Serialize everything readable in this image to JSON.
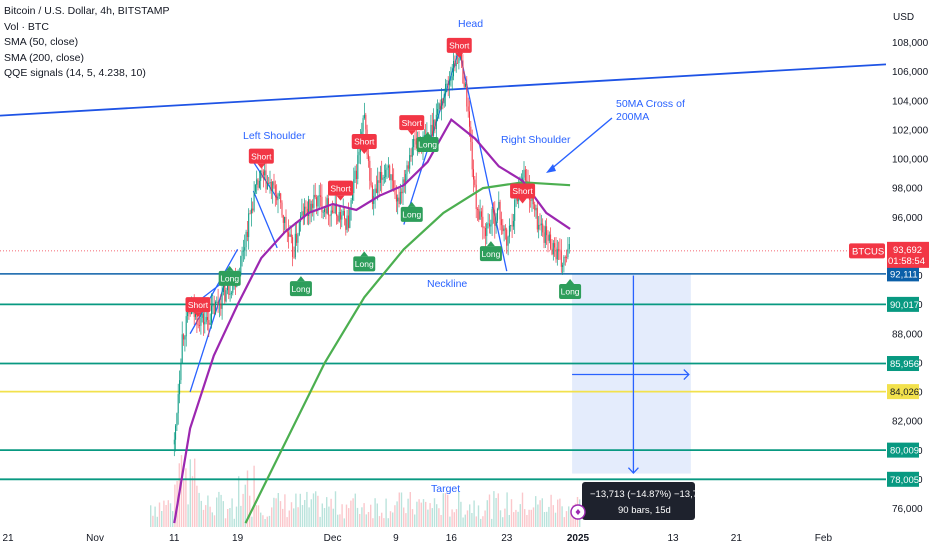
{
  "legend": {
    "title": "Bitcoin / U.S. Dollar, 4h, BITSTAMP",
    "vol": "Vol · BTC",
    "sma50": "SMA (50, close)",
    "sma200": "SMA (200, close)",
    "qqe": "QQE signals (14, 5, 4.238, 10)"
  },
  "currency": "USD",
  "symbol": "BTCUSD",
  "last_price": "93,692",
  "countdown": "01:58:54",
  "measure": {
    "line1": "−13,713 (−14.87%) −13,713",
    "line2": "90 bars, 15d"
  },
  "annotations": {
    "head": "Head",
    "left_shoulder": "Left Shoulder",
    "right_shoulder": "Right Shoulder",
    "neckline": "Neckline",
    "ma_cross": [
      "50MA Cross of",
      "200MA"
    ],
    "target": "Target"
  },
  "chart_data": {
    "type": "candlestick",
    "y_axis": {
      "min": 75000,
      "max": 109000,
      "ticks": [
        76000,
        78000,
        80000,
        82000,
        84000,
        86000,
        88000,
        90000,
        92000,
        94000,
        96000,
        98000,
        100000,
        102000,
        104000,
        106000,
        108000
      ],
      "tick_labels": [
        "76,000",
        "78,000",
        "80,000",
        "82,000",
        "84,000",
        "86,000",
        "88,000",
        "90,000",
        "92,000",
        "94,000",
        "96,000",
        "98,000",
        "100,000",
        "102,000",
        "104,000",
        "106,000",
        "108,000"
      ]
    },
    "x_axis": {
      "ticks": [
        {
          "label": "21",
          "date": "2024-10-21"
        },
        {
          "label": "Nov",
          "date": "2024-11-01"
        },
        {
          "label": "11",
          "date": "2024-11-11"
        },
        {
          "label": "19",
          "date": "2024-11-19"
        },
        {
          "label": "Dec",
          "date": "2024-12-01"
        },
        {
          "label": "9",
          "date": "2024-12-09"
        },
        {
          "label": "16",
          "date": "2024-12-16"
        },
        {
          "label": "23",
          "date": "2024-12-23"
        },
        {
          "label": "2025",
          "date": "2025-01-01"
        },
        {
          "label": "13",
          "date": "2025-01-13"
        },
        {
          "label": "21",
          "date": "2025-01-21"
        },
        {
          "label": "Feb",
          "date": "2025-02-01"
        }
      ]
    },
    "horizontal_levels": [
      {
        "price": 92111,
        "label": "92,111",
        "color": "#0b5fa8"
      },
      {
        "price": 90017,
        "label": "90,017",
        "color": "#089981"
      },
      {
        "price": 85956,
        "label": "85,956",
        "color": "#089981"
      },
      {
        "price": 84026,
        "label": "84,026",
        "color": "#f2e14c"
      },
      {
        "price": 80009,
        "label": "80,009",
        "color": "#089981"
      },
      {
        "price": 78005,
        "label": "78,005",
        "color": "#089981"
      }
    ],
    "trendline": {
      "start": {
        "date": "2024-10-21",
        "price": 102980
      },
      "end": {
        "date": "2025-02-08",
        "price": 106500
      }
    },
    "price_path": [
      {
        "date": "2024-11-11",
        "price": 80400
      },
      {
        "date": "2024-11-12",
        "price": 87800
      },
      {
        "date": "2024-11-13",
        "price": 89500
      },
      {
        "date": "2024-11-15",
        "price": 88800
      },
      {
        "date": "2024-11-17",
        "price": 90500
      },
      {
        "date": "2024-11-19",
        "price": 92000
      },
      {
        "date": "2024-11-21",
        "price": 97300
      },
      {
        "date": "2024-11-22",
        "price": 98800
      },
      {
        "date": "2024-11-24",
        "price": 97500
      },
      {
        "date": "2024-11-26",
        "price": 93500
      },
      {
        "date": "2024-11-27",
        "price": 96000
      },
      {
        "date": "2024-11-29",
        "price": 97200
      },
      {
        "date": "2024-12-01",
        "price": 96500
      },
      {
        "date": "2024-12-03",
        "price": 95600
      },
      {
        "date": "2024-12-05",
        "price": 102800
      },
      {
        "date": "2024-12-06",
        "price": 97000
      },
      {
        "date": "2024-12-08",
        "price": 99800
      },
      {
        "date": "2024-12-09",
        "price": 96500
      },
      {
        "date": "2024-12-11",
        "price": 101000
      },
      {
        "date": "2024-12-13",
        "price": 101300
      },
      {
        "date": "2024-12-15",
        "price": 104400
      },
      {
        "date": "2024-12-17",
        "price": 107400
      },
      {
        "date": "2024-12-18",
        "price": 104000
      },
      {
        "date": "2024-12-19",
        "price": 97400
      },
      {
        "date": "2024-12-20",
        "price": 95000
      },
      {
        "date": "2024-12-22",
        "price": 96500
      },
      {
        "date": "2024-12-23",
        "price": 94200
      },
      {
        "date": "2024-12-25",
        "price": 99300
      },
      {
        "date": "2024-12-27",
        "price": 95500
      },
      {
        "date": "2024-12-29",
        "price": 93900
      },
      {
        "date": "2024-12-30",
        "price": 92700
      },
      {
        "date": "2024-12-31",
        "price": 93692
      }
    ],
    "sma50": [
      {
        "date": "2024-11-11",
        "price": 75000
      },
      {
        "date": "2024-11-13",
        "price": 81500
      },
      {
        "date": "2024-11-16",
        "price": 86500
      },
      {
        "date": "2024-11-19",
        "price": 90000
      },
      {
        "date": "2024-11-22",
        "price": 93200
      },
      {
        "date": "2024-11-25",
        "price": 95000
      },
      {
        "date": "2024-11-28",
        "price": 96300
      },
      {
        "date": "2024-12-01",
        "price": 96900
      },
      {
        "date": "2024-12-04",
        "price": 96500
      },
      {
        "date": "2024-12-07",
        "price": 97500
      },
      {
        "date": "2024-12-10",
        "price": 98200
      },
      {
        "date": "2024-12-13",
        "price": 99800
      },
      {
        "date": "2024-12-16",
        "price": 102700
      },
      {
        "date": "2024-12-19",
        "price": 101400
      },
      {
        "date": "2024-12-22",
        "price": 99500
      },
      {
        "date": "2024-12-25",
        "price": 98500
      },
      {
        "date": "2024-12-28",
        "price": 96300
      },
      {
        "date": "2024-12-31",
        "price": 95200
      }
    ],
    "sma200": [
      {
        "date": "2024-11-20",
        "price": 75000
      },
      {
        "date": "2024-11-25",
        "price": 80500
      },
      {
        "date": "2024-11-30",
        "price": 86000
      },
      {
        "date": "2024-12-05",
        "price": 90500
      },
      {
        "date": "2024-12-10",
        "price": 93800
      },
      {
        "date": "2024-12-15",
        "price": 96300
      },
      {
        "date": "2024-12-20",
        "price": 98000
      },
      {
        "date": "2024-12-25",
        "price": 98400
      },
      {
        "date": "2024-12-31",
        "price": 98200
      }
    ],
    "signals": [
      {
        "label": "Short",
        "kind": "short",
        "date": "2024-11-14",
        "price": 90000
      },
      {
        "label": "Long",
        "kind": "long",
        "date": "2024-11-18",
        "price": 91800
      },
      {
        "label": "Short",
        "kind": "short",
        "date": "2024-11-22",
        "price": 100200
      },
      {
        "label": "Long",
        "kind": "long",
        "date": "2024-11-27",
        "price": 91100
      },
      {
        "label": "Short",
        "kind": "short",
        "date": "2024-12-02",
        "price": 98000
      },
      {
        "label": "Short",
        "kind": "short",
        "date": "2024-12-05",
        "price": 101200
      },
      {
        "label": "Long",
        "kind": "long",
        "date": "2024-12-05",
        "price": 92800
      },
      {
        "label": "Long",
        "kind": "long",
        "date": "2024-12-11",
        "price": 96200
      },
      {
        "label": "Short",
        "kind": "short",
        "date": "2024-12-11",
        "price": 102500
      },
      {
        "label": "Long",
        "kind": "long",
        "date": "2024-12-13",
        "price": 101000
      },
      {
        "label": "Short",
        "kind": "short",
        "date": "2024-12-17",
        "price": 107800
      },
      {
        "label": "Long",
        "kind": "long",
        "date": "2024-12-21",
        "price": 93500
      },
      {
        "label": "Short",
        "kind": "short",
        "date": "2024-12-25",
        "price": 97800
      },
      {
        "label": "Long",
        "kind": "long",
        "date": "2024-12-31",
        "price": 90900
      }
    ]
  },
  "colors": {
    "up": "#089981",
    "down": "#f23645",
    "sma50": "#9c27b0",
    "sma200": "#4caf50",
    "drawing_blue": "#2962ff",
    "trendline": "#1e53e5",
    "neckline": "#0b5fa8",
    "target_zone": "#dbe6fb",
    "tooltip_bg": "#1e222d",
    "price_tag": "#f23645"
  }
}
